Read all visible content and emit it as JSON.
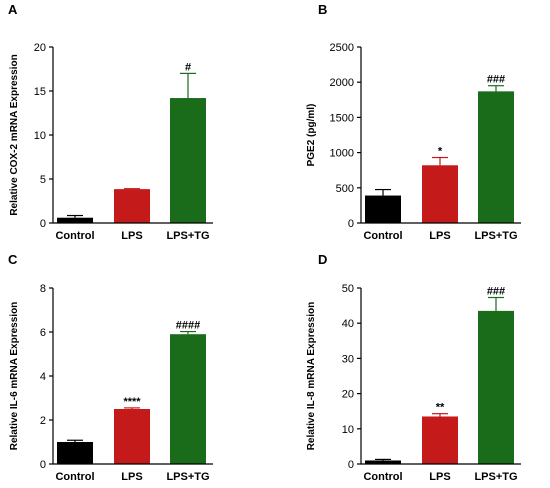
{
  "figure": {
    "colors": {
      "control": "#000000",
      "lps": "#c41a1a",
      "lps_tg": "#1a6b1a",
      "axis": "#000000"
    }
  },
  "chart_data": [
    {
      "panel_label": "A",
      "type": "bar",
      "categories": [
        "Control",
        "LPS",
        "LPS+TG"
      ],
      "values": [
        0.6,
        3.85,
        14.2
      ],
      "errors": [
        0.25,
        0.05,
        2.8
      ],
      "annotations": [
        "",
        "",
        "#"
      ],
      "title": "",
      "xlabel": "",
      "ylabel": "Relative COX-2 mRNA Expression",
      "ylim": [
        0,
        20
      ],
      "yticks": [
        0,
        5,
        10,
        15,
        20
      ],
      "grid": false
    },
    {
      "panel_label": "B",
      "type": "bar",
      "categories": [
        "Control",
        "LPS",
        "LPS+TG"
      ],
      "values": [
        390,
        820,
        1870
      ],
      "errors": [
        85,
        110,
        80
      ],
      "annotations": [
        "",
        "*",
        "###"
      ],
      "title": "",
      "xlabel": "",
      "ylabel": "PGE2 (pg/ml)",
      "ylim": [
        0,
        2500
      ],
      "yticks": [
        0,
        500,
        1000,
        1500,
        2000,
        2500
      ],
      "grid": false
    },
    {
      "panel_label": "C",
      "type": "bar",
      "categories": [
        "Control",
        "LPS",
        "LPS+TG"
      ],
      "values": [
        1.0,
        2.5,
        5.9
      ],
      "errors": [
        0.08,
        0.05,
        0.12
      ],
      "annotations": [
        "",
        "****",
        "####"
      ],
      "title": "",
      "xlabel": "",
      "ylabel": "Relative IL-6 mRNA Expression",
      "ylim": [
        0,
        8
      ],
      "yticks": [
        0,
        2,
        4,
        6,
        8
      ],
      "grid": false
    },
    {
      "panel_label": "D",
      "type": "bar",
      "categories": [
        "Control",
        "LPS",
        "LPS+TG"
      ],
      "values": [
        1.0,
        13.5,
        43.5
      ],
      "errors": [
        0.3,
        0.8,
        3.8
      ],
      "annotations": [
        "",
        "**",
        "###"
      ],
      "title": "",
      "xlabel": "",
      "ylabel": "Relative IL-8 mRNA Expression",
      "ylim": [
        0,
        50
      ],
      "yticks": [
        0,
        10,
        20,
        30,
        40,
        50
      ],
      "grid": false
    }
  ]
}
